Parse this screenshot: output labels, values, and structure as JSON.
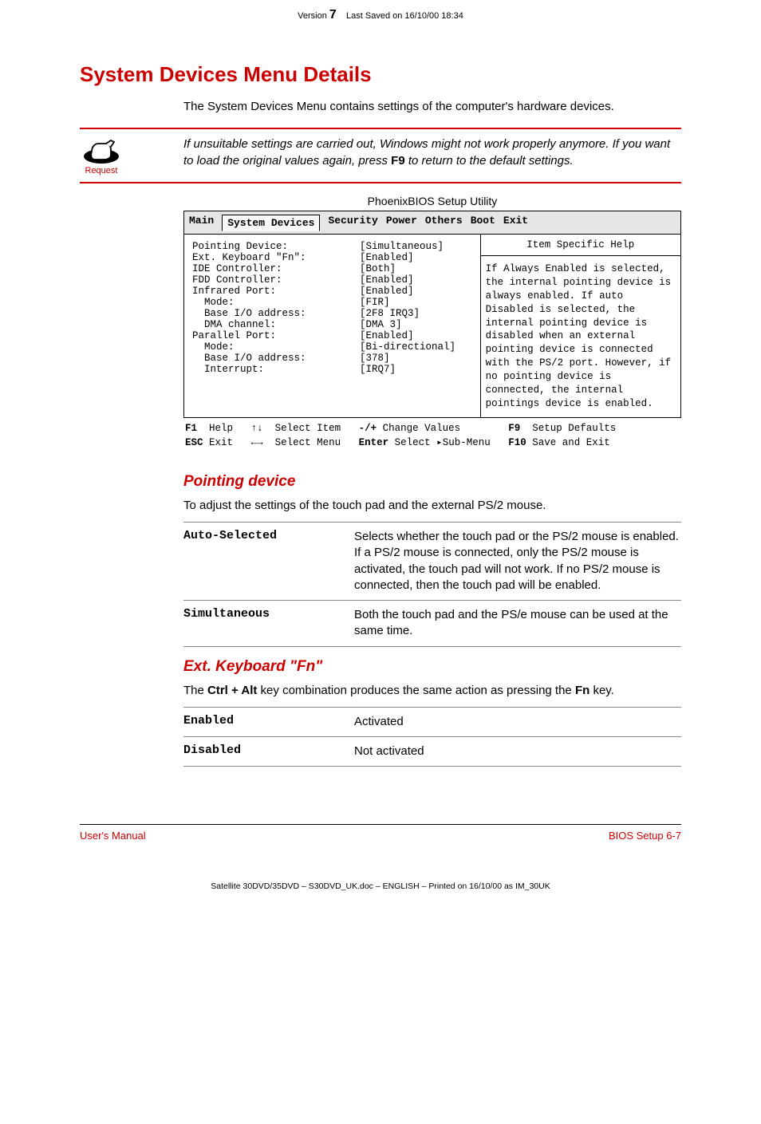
{
  "header": {
    "version_prefix": "Version",
    "version_num": "7",
    "saved": "Last Saved on 16/10/00 18:34"
  },
  "section_title": "System Devices Menu Details",
  "intro": "The System Devices Menu contains settings of the computer's hardware devices.",
  "note": {
    "icon_label": "Request",
    "text_before": "If unsuitable settings are carried out, Windows might not work properly anymore. If you want to load the original values again, press ",
    "key": "F9",
    "text_after": " to return to the default settings."
  },
  "bios": {
    "caption": "PhoenixBIOS Setup Utility",
    "tabs": [
      "Main",
      "System Devices",
      "Security",
      "Power",
      "Others",
      "Boot",
      "Exit"
    ],
    "active_tab": "System Devices",
    "left_rows": [
      {
        "label": "Pointing Device:",
        "value": "[Simultaneous]"
      },
      {
        "label": "Ext. Keyboard \"Fn\":",
        "value": "[Enabled]"
      },
      {
        "label": "IDE Controller:",
        "value": "[Both]"
      },
      {
        "label": "FDD Controller:",
        "value": "[Enabled]"
      },
      {
        "label": "",
        "value": ""
      },
      {
        "label": "Infrared Port:",
        "value": "[Enabled]"
      },
      {
        "label": "  Mode:",
        "value": "[FIR]"
      },
      {
        "label": "  Base I/O address:",
        "value": "[2F8 IRQ3]"
      },
      {
        "label": "  DMA channel:",
        "value": "[DMA 3]"
      },
      {
        "label": "Parallel Port:",
        "value": "[Enabled]"
      },
      {
        "label": "  Mode:",
        "value": "[Bi-directional]"
      },
      {
        "label": "  Base I/O address:",
        "value": "[378]"
      },
      {
        "label": "  Interrupt:",
        "value": "[IRQ7]"
      }
    ],
    "right_head": "Item Specific Help",
    "right_body": "If Always Enabled is selected, the internal pointing device is always enabled. If auto Disabled is selected, the internal pointing device is disabled when an external pointing device is connected with the PS/2 port. However, if no pointing device is connected, the internal pointings device is enabled.",
    "footer": {
      "l1_key1": "F1",
      "l1_txt1": "Help",
      "l1_arrows1": "↑↓",
      "l1_txt2": "Select Item",
      "l1_key2": "-/+",
      "l1_txt3": "Change Values",
      "l1_key3": "F9",
      "l1_txt4": "Setup Defaults",
      "l2_key1": "ESC",
      "l2_txt1": "Exit",
      "l2_arrows1": "←→",
      "l2_txt2": "Select Menu",
      "l2_key2": "Enter",
      "l2_txt3": "Select ▸Sub-Menu",
      "l2_key3": "F10",
      "l2_txt4": "Save and Exit"
    }
  },
  "pointing": {
    "title": "Pointing device",
    "intro": "To adjust the settings of the touch pad and the external PS/2 mouse.",
    "rows": [
      {
        "term": "Auto-Selected",
        "desc": "Selects whether the touch pad or the PS/2 mouse is enabled. If a PS/2 mouse is connected, only the PS/2 mouse is activated, the touch pad will not work. If no PS/2 mouse is connected, then the touch pad will be enabled."
      },
      {
        "term": "Simultaneous",
        "desc": "Both the touch pad and the PS/e mouse can be used at the same time."
      }
    ]
  },
  "extkb": {
    "title": "Ext. Keyboard \"Fn\"",
    "intro_before": "The ",
    "key1": "Ctrl + Alt",
    "intro_mid": " key combination produces the same action as pressing the ",
    "key2": "Fn",
    "intro_after": " key.",
    "rows": [
      {
        "term": "Enabled",
        "desc": "Activated"
      },
      {
        "term": "Disabled",
        "desc": "Not activated"
      }
    ]
  },
  "footer": {
    "left": "User's Manual",
    "right": "BIOS Setup  6-7"
  },
  "docfooter": "Satellite 30DVD/35DVD  – S30DVD_UK.doc – ENGLISH – Printed on 16/10/00 as IM_30UK"
}
